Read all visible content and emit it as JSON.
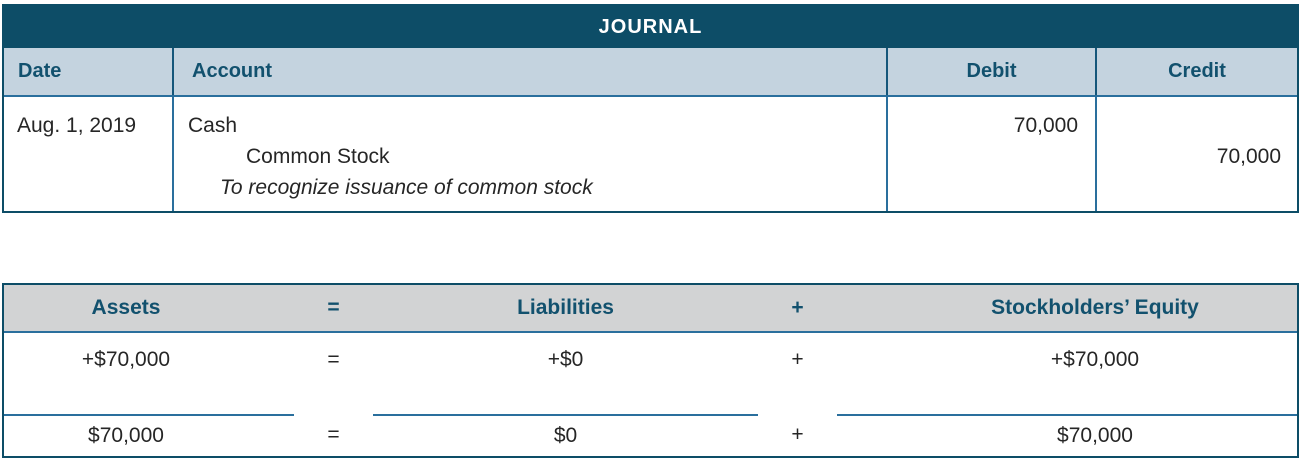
{
  "journal": {
    "title": "JOURNAL",
    "columns": {
      "date": "Date",
      "account": "Account",
      "debit": "Debit",
      "credit": "Credit"
    },
    "entry": {
      "date": "Aug. 1, 2019",
      "debit_account": "Cash",
      "credit_account": "Common Stock",
      "memo": "To recognize issuance of common stock",
      "debit_amount": "70,000",
      "credit_amount": "70,000"
    }
  },
  "equation": {
    "header": {
      "assets": "Assets",
      "equals": "=",
      "liabilities": "Liabilities",
      "plus": "+",
      "equity": "Stockholders’ Equity"
    },
    "changes": {
      "assets": "+$70,000",
      "equals": "=",
      "liabilities": "+$0",
      "plus": "+",
      "equity": "+$70,000"
    },
    "totals": {
      "assets": "$70,000",
      "equals": "=",
      "liabilities": "$0",
      "plus": "+",
      "equity": "$70,000"
    }
  },
  "colors": {
    "band_teal": "#0d4d67",
    "journal_header_bg": "#c4d3df",
    "equation_header_bg": "#d2d3d4",
    "heading_text": "#12516e",
    "body_text": "#262626",
    "rule_blue": "#2a6f9d"
  }
}
